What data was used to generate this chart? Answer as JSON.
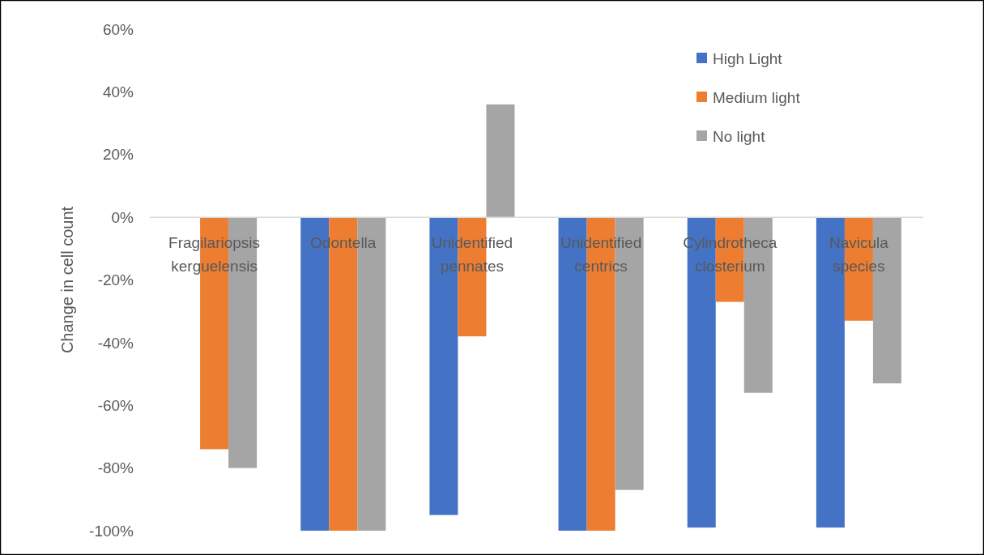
{
  "chart_data": {
    "type": "bar",
    "ylabel": "Change in cell count",
    "categories": [
      "Fragilariopsis kerguelensis",
      "Odontella",
      "Unidentified pennates",
      "Unidentified centrics",
      "Cylindrotheca closterium",
      "Navicula species"
    ],
    "series": [
      {
        "name": "High Light",
        "color": "#4472c4",
        "values": [
          null,
          -100,
          -95,
          -100,
          -99,
          -99
        ]
      },
      {
        "name": "Medium light",
        "color": "#ed7d31",
        "values": [
          -74,
          -100,
          -38,
          -100,
          -27,
          -33
        ]
      },
      {
        "name": "No light",
        "color": "#a5a5a5",
        "values": [
          -80,
          -100,
          36,
          -87,
          -56,
          -53
        ]
      }
    ],
    "ylim": [
      -100,
      60
    ],
    "yticks": [
      {
        "value": -100,
        "label": "-100%"
      },
      {
        "value": -80,
        "label": "-80%"
      },
      {
        "value": -60,
        "label": "-60%"
      },
      {
        "value": -40,
        "label": "-40%"
      },
      {
        "value": -20,
        "label": "-20%"
      },
      {
        "value": 0,
        "label": "0%"
      },
      {
        "value": 20,
        "label": "20%"
      },
      {
        "value": 40,
        "label": "40%"
      },
      {
        "value": 60,
        "label": "60%"
      }
    ],
    "grid": false,
    "legend": "top right"
  }
}
